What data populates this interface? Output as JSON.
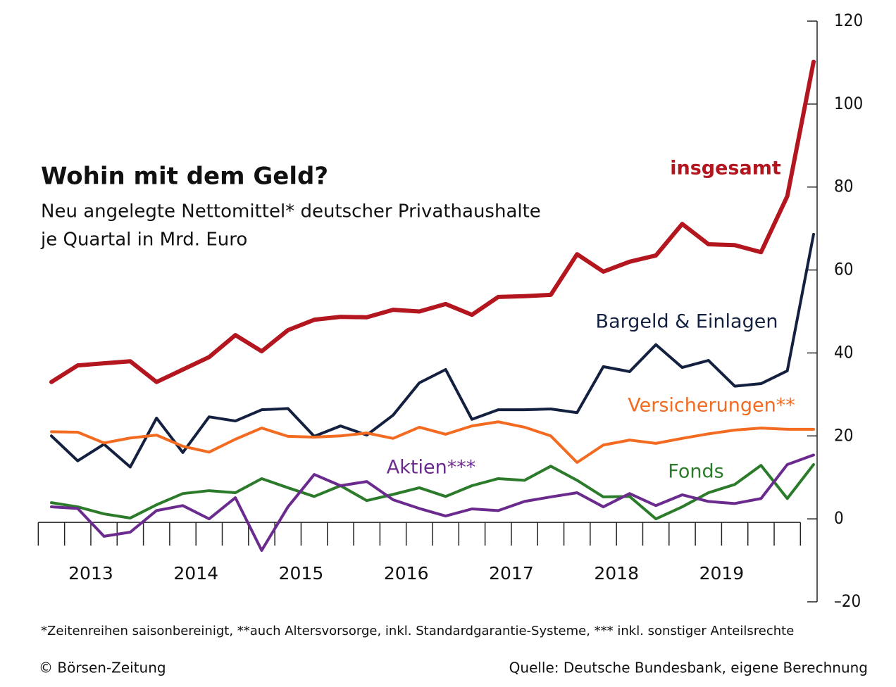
{
  "chart_data": {
    "type": "line",
    "title": "Wohin mit dem Geld?",
    "subtitle": [
      "Neu angelegte Nettomittel* deutscher Privathaushalte",
      "je Quartal in Mrd. Euro"
    ],
    "categories": [
      null,
      null,
      null,
      null,
      null,
      null,
      null,
      null,
      null,
      null,
      null,
      null,
      null,
      null,
      null,
      null,
      null,
      null,
      null,
      null,
      null,
      null,
      null,
      null,
      null,
      null,
      null,
      null,
      null,
      null
    ],
    "year_labels": [
      "2013",
      "2014",
      "2015",
      "2016",
      "2017",
      "2018",
      "2019"
    ],
    "series": [
      {
        "name": "insgesamt",
        "color": "#b3161e",
        "values": [
          33,
          37,
          37.5,
          38,
          33,
          36,
          39,
          44.3,
          40.4,
          45.5,
          48,
          48.7,
          48.6,
          50.4,
          50,
          51.8,
          49.2,
          53.5,
          53.7,
          54,
          63.8,
          59.6,
          62,
          63.5,
          71.1,
          66.2,
          66,
          64.3,
          77.8,
          110.2
        ]
      },
      {
        "name": "Bargeld & Einlagen",
        "color": "#14203f",
        "values": [
          20,
          14,
          18,
          12.5,
          24.3,
          16,
          24.6,
          23.6,
          26.3,
          26.6,
          19.9,
          22.4,
          20.2,
          25,
          32.8,
          36,
          24,
          26.3,
          26.3,
          26.5,
          25.6,
          36.7,
          35.5,
          42,
          36.5,
          38.2,
          32,
          32.6,
          35.7,
          68.6
        ]
      },
      {
        "name": "Versicherungen**",
        "color": "#f26b21",
        "values": [
          21,
          20.9,
          18.3,
          19.5,
          20.2,
          17.5,
          16.1,
          19.2,
          21.9,
          19.9,
          19.7,
          20,
          20.7,
          19.4,
          22.1,
          20.4,
          22.4,
          23.4,
          22.1,
          20,
          13.6,
          17.8,
          19,
          18.2,
          19.4,
          20.5,
          21.4,
          21.9,
          21.6,
          21.6
        ]
      },
      {
        "name": "Fonds",
        "color": "#2b7b2b",
        "values": [
          3.9,
          2.9,
          1.2,
          0.2,
          3.4,
          6.1,
          6.8,
          6.3,
          9.7,
          7.5,
          5.4,
          8,
          4.4,
          5.9,
          7.5,
          5.4,
          8,
          9.7,
          9.3,
          12.7,
          9.3,
          5.3,
          5.4,
          0,
          2.9,
          6.3,
          8.3,
          12.9,
          4.9,
          13.1
        ]
      },
      {
        "name": "Aktien***",
        "color": "#6b2b8e",
        "values": [
          2.9,
          2.5,
          -4.2,
          -3.2,
          2,
          3.2,
          0,
          5.1,
          -7.6,
          2.9,
          10.7,
          8,
          9,
          4.6,
          2.5,
          0.7,
          2.4,
          2,
          4.2,
          5.3,
          6.3,
          2.9,
          6.1,
          3.2,
          5.8,
          4.2,
          3.7,
          4.9,
          13.1,
          15.4
        ]
      }
    ],
    "ylim": [
      -20,
      120
    ],
    "yticks": [
      {
        "value": -20,
        "label": "–20"
      },
      0,
      20,
      40,
      60,
      80,
      100,
      120
    ],
    "footnote": "*Zeitenreihen saisonbereinigt, **auch Altersvorsorge, inkl. Standardgarantie-Systeme, *** inkl. sonstiger Anteilsrechte",
    "copyright": "© Börsen-Zeitung",
    "source": "Quelle: Deutsche Bundesbank, eigene Berechnung"
  }
}
